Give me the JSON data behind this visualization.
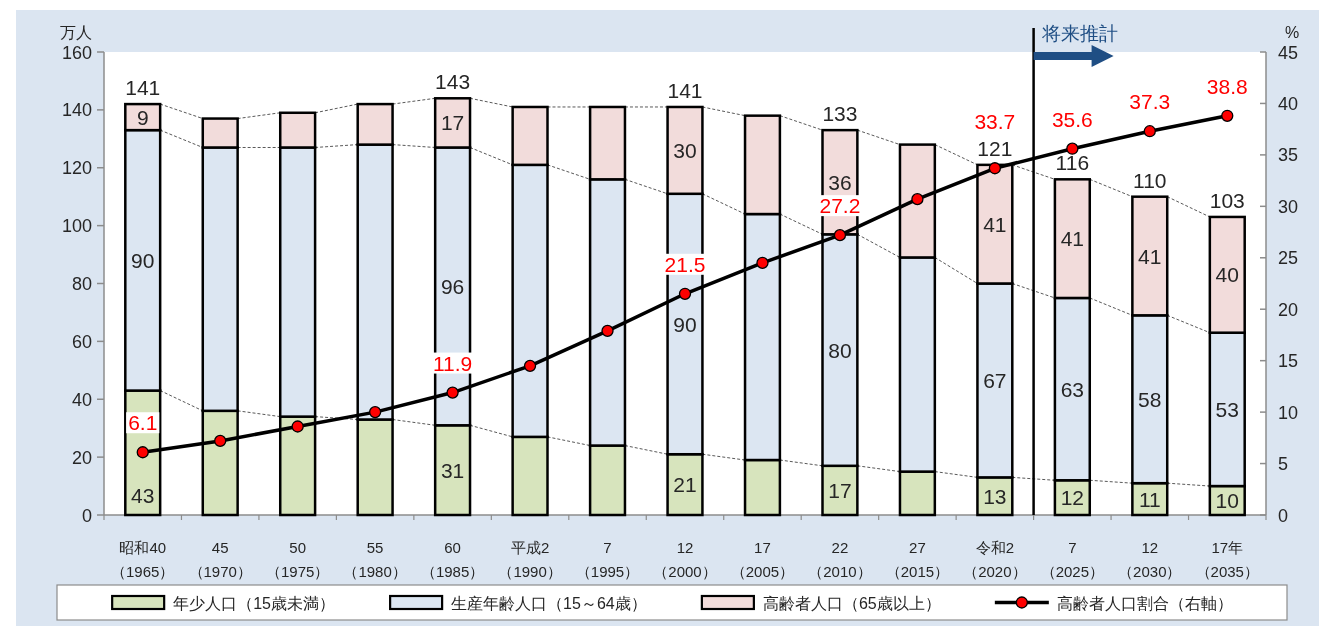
{
  "chart_data": {
    "type": "bar",
    "stacked": true,
    "categories": [
      "昭和40（1965）",
      "45（1970）",
      "50（1975）",
      "55（1980）",
      "60（1985）",
      "平成2（1990）",
      "7（1995）",
      "12（2000）",
      "17（2005）",
      "22（2010）",
      "27（2015）",
      "令和2（2020）",
      "7（2025）",
      "12（2030）",
      "17年（2035）"
    ],
    "ylabel": "万人",
    "y2label": "%",
    "ylim": [
      0,
      160
    ],
    "yticks": [
      0,
      20,
      40,
      60,
      80,
      100,
      120,
      140,
      160
    ],
    "y2lim": [
      0,
      45
    ],
    "y2ticks": [
      0,
      5,
      10,
      15,
      20,
      25,
      30,
      35,
      40,
      45
    ],
    "series": [
      {
        "name": "年少人口（15歳未満）",
        "color": "#d7e4bd",
        "values": [
          43,
          36,
          34,
          33,
          31,
          27,
          24,
          21,
          19,
          17,
          15,
          13,
          12,
          11,
          10
        ],
        "value_labels": [
          "43",
          null,
          null,
          null,
          "31",
          null,
          null,
          "21",
          null,
          "17",
          null,
          "13",
          "12",
          "11",
          "10"
        ]
      },
      {
        "name": "生産年齢人口（15～64歳）",
        "color": "#dce6f2",
        "values": [
          90,
          91,
          93,
          95,
          96,
          94,
          92,
          90,
          85,
          80,
          74,
          67,
          63,
          58,
          53
        ],
        "value_labels": [
          "90",
          null,
          null,
          null,
          "96",
          null,
          null,
          "90",
          null,
          "80",
          null,
          "67",
          "63",
          "58",
          "53"
        ]
      },
      {
        "name": "高齢者人口（65歳以上）",
        "color": "#f2dcdb",
        "values": [
          9,
          10,
          12,
          14,
          17,
          20,
          25,
          30,
          34,
          36,
          39,
          41,
          41,
          41,
          40
        ],
        "value_labels": [
          "9",
          null,
          null,
          null,
          "17",
          null,
          null,
          "30",
          null,
          "36",
          null,
          "41",
          "41",
          "41",
          "40"
        ]
      },
      {
        "name": "高齢者人口割合（右軸）",
        "type": "line",
        "axis": "y2",
        "color": "#000000",
        "colors": [
          "#ff0000",
          "#ff0000",
          "#ff0000",
          "#ff0000",
          "#ff0000",
          "#ff0000",
          "#ff0000",
          "#ff0000",
          "#ff0000",
          "#ff0000",
          "#ff0000",
          "#ff0000",
          "#ff0000",
          "#ff0000",
          "#ff0000"
        ],
        "values": [
          6.1,
          7.2,
          8.6,
          10.0,
          11.9,
          14.5,
          17.9,
          21.5,
          24.5,
          27.2,
          30.7,
          33.7,
          35.6,
          37.3,
          38.8
        ],
        "value_labels": [
          "6.1",
          null,
          null,
          null,
          "11.9",
          null,
          null,
          "21.5",
          null,
          "27.2",
          null,
          "33.7",
          "35.6",
          "37.3",
          "38.8"
        ]
      }
    ],
    "totals": [
      "141",
      null,
      null,
      null,
      "143",
      null,
      null,
      "141",
      null,
      "133",
      null,
      "121",
      "116",
      "110",
      "103"
    ],
    "annotations": [
      "将来推計"
    ],
    "legend": "bottom",
    "marker": "circle"
  }
}
